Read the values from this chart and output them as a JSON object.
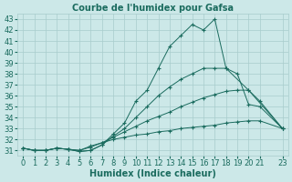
{
  "title": "Courbe de l'humidex pour Gafsa",
  "xlabel": "Humidex (Indice chaleur)",
  "ylabel": "",
  "background_color": "#cce8e8",
  "line_color": "#1a6b5e",
  "grid_color": "#a8cccc",
  "xlim": [
    -0.5,
    23.5
  ],
  "ylim": [
    30.5,
    43.5
  ],
  "yticks": [
    31,
    32,
    33,
    34,
    35,
    36,
    37,
    38,
    39,
    40,
    41,
    42,
    43
  ],
  "xticks": [
    0,
    1,
    2,
    3,
    4,
    5,
    6,
    7,
    8,
    9,
    10,
    11,
    12,
    13,
    14,
    15,
    16,
    17,
    18,
    19,
    20,
    21,
    23
  ],
  "lines": [
    {
      "x": [
        0,
        1,
        2,
        3,
        4,
        5,
        6,
        7,
        8,
        9,
        10,
        11,
        12,
        13,
        14,
        15,
        16,
        17,
        18,
        19,
        20,
        21,
        23
      ],
      "y": [
        31.2,
        31.0,
        31.0,
        31.2,
        31.1,
        31.0,
        31.4,
        31.7,
        32.0,
        32.2,
        32.4,
        32.5,
        32.7,
        32.8,
        33.0,
        33.1,
        33.2,
        33.3,
        33.5,
        33.6,
        33.7,
        33.7,
        33.0
      ]
    },
    {
      "x": [
        0,
        1,
        2,
        3,
        4,
        5,
        6,
        7,
        8,
        9,
        10,
        11,
        12,
        13,
        14,
        15,
        16,
        17,
        18,
        19,
        20,
        21,
        23
      ],
      "y": [
        31.2,
        31.0,
        31.0,
        31.2,
        31.1,
        31.0,
        31.3,
        31.7,
        32.2,
        32.7,
        33.2,
        33.7,
        34.1,
        34.5,
        35.0,
        35.4,
        35.8,
        36.1,
        36.4,
        36.5,
        36.5,
        35.5,
        33.0
      ]
    },
    {
      "x": [
        0,
        1,
        2,
        3,
        4,
        5,
        6,
        7,
        8,
        9,
        10,
        11,
        12,
        13,
        14,
        15,
        16,
        17,
        18,
        19,
        20,
        21,
        23
      ],
      "y": [
        31.2,
        31.0,
        31.0,
        31.2,
        31.1,
        30.9,
        31.0,
        31.5,
        32.3,
        33.0,
        34.0,
        35.0,
        36.0,
        36.8,
        37.5,
        38.0,
        38.5,
        38.5,
        38.5,
        38.0,
        35.2,
        35.0,
        33.0
      ]
    },
    {
      "x": [
        0,
        1,
        2,
        3,
        4,
        5,
        6,
        7,
        8,
        9,
        10,
        11,
        12,
        13,
        14,
        15,
        16,
        17,
        18,
        20,
        23
      ],
      "y": [
        31.2,
        31.0,
        31.0,
        31.2,
        31.1,
        30.9,
        31.0,
        31.5,
        32.5,
        33.5,
        35.5,
        36.5,
        38.5,
        40.5,
        41.5,
        42.5,
        42.0,
        43.0,
        38.5,
        36.5,
        33.0
      ]
    }
  ],
  "title_fontsize": 7,
  "label_fontsize": 7,
  "tick_fontsize": 6
}
